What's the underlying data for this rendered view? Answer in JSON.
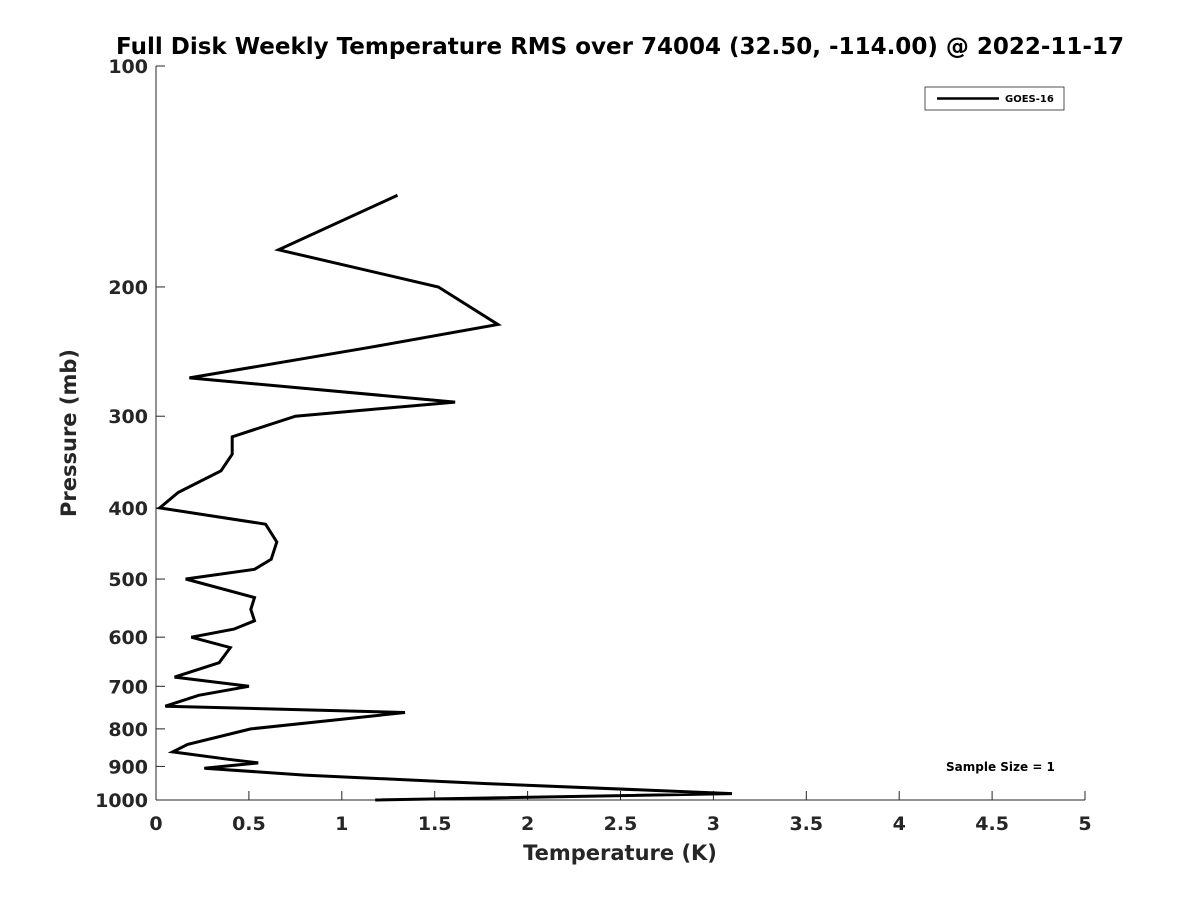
{
  "chart_data": {
    "type": "line",
    "title": "Full Disk Weekly Temperature RMS over 74004 (32.50, -114.00) @ 2022-11-17",
    "xlabel": "Temperature (K)",
    "ylabel": "Pressure (mb)",
    "xlim": [
      0,
      5
    ],
    "ylim": [
      100,
      1000
    ],
    "y_scale": "log",
    "y_reversed": true,
    "x_ticks": [
      "0",
      "0.5",
      "1",
      "1.5",
      "2",
      "2.5",
      "3",
      "3.5",
      "4",
      "4.5",
      "5"
    ],
    "y_ticks": [
      "100",
      "200",
      "300",
      "400",
      "500",
      "600",
      "700",
      "800",
      "900",
      "1000"
    ],
    "legend_position": "top-right",
    "grid": false,
    "annotation": "Sample Size = 1",
    "line_color": "#000000",
    "series": [
      {
        "name": "GOES-16",
        "points": [
          [
            1.3,
            150
          ],
          [
            0.66,
            178
          ],
          [
            1.52,
            200
          ],
          [
            1.84,
            225
          ],
          [
            1.14,
            242
          ],
          [
            0.18,
            266
          ],
          [
            1.61,
            287
          ],
          [
            0.75,
            300
          ],
          [
            0.41,
            320
          ],
          [
            0.41,
            338
          ],
          [
            0.35,
            356
          ],
          [
            0.12,
            381
          ],
          [
            0.02,
            400
          ],
          [
            0.59,
            421
          ],
          [
            0.65,
            445
          ],
          [
            0.62,
            470
          ],
          [
            0.53,
            485
          ],
          [
            0.16,
            500
          ],
          [
            0.53,
            530
          ],
          [
            0.51,
            550
          ],
          [
            0.53,
            570
          ],
          [
            0.42,
            585
          ],
          [
            0.19,
            600
          ],
          [
            0.4,
            620
          ],
          [
            0.34,
            650
          ],
          [
            0.1,
            680
          ],
          [
            0.5,
            700
          ],
          [
            0.23,
            720
          ],
          [
            0.05,
            745
          ],
          [
            1.34,
            760
          ],
          [
            0.51,
            800
          ],
          [
            0.17,
            840
          ],
          [
            0.09,
            860
          ],
          [
            0.39,
            880
          ],
          [
            0.55,
            890
          ],
          [
            0.26,
            905
          ],
          [
            0.8,
            925
          ],
          [
            1.78,
            950
          ],
          [
            3.1,
            980
          ],
          [
            1.18,
            1000
          ]
        ]
      }
    ]
  }
}
